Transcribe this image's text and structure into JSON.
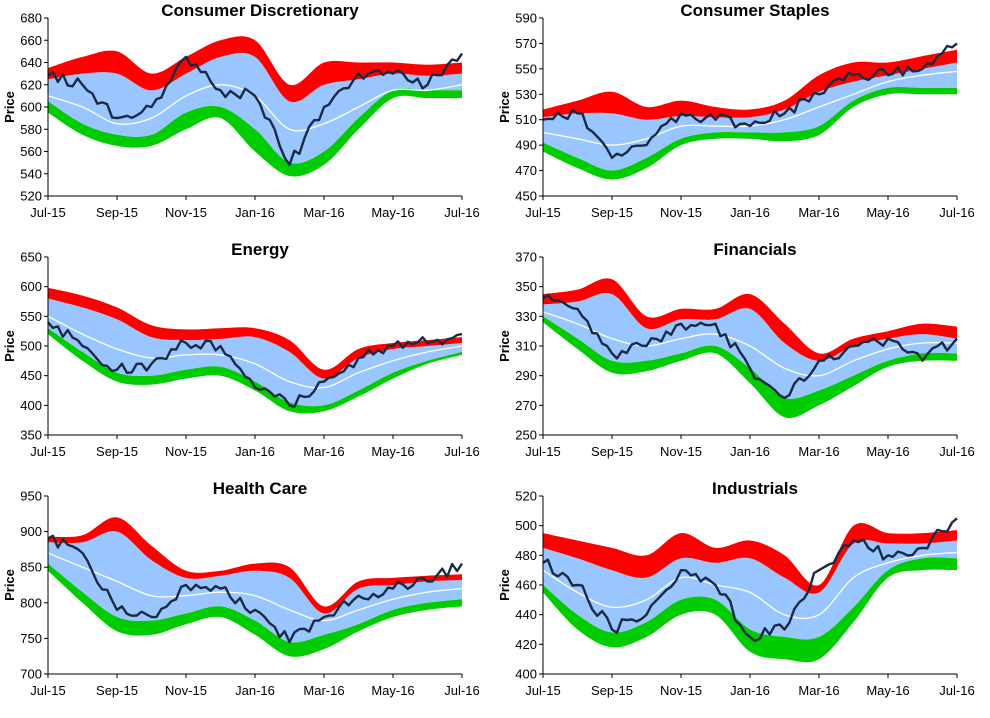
{
  "colors": {
    "upper_band": "#ff0000",
    "outer_band": "#99c6ff",
    "lower_band": "#00cc00",
    "mid_line": "#ffffff",
    "price_line": "#1a2a44"
  },
  "chart_data": [
    {
      "type": "area",
      "title": "Consumer Discretionary",
      "ylabel": "Price",
      "ylim": [
        520,
        680
      ],
      "yticks": [
        520,
        540,
        560,
        580,
        600,
        620,
        640,
        660,
        680
      ],
      "xticks": [
        "Jul-15",
        "Sep-15",
        "Nov-15",
        "Jan-16",
        "Mar-16",
        "May-16",
        "Jul-16"
      ],
      "x": [
        0,
        1,
        2,
        3,
        4,
        5,
        6,
        7,
        8,
        9,
        10,
        11,
        12
      ],
      "x_meaning": "months since Jul-15",
      "series": [
        {
          "name": "Price",
          "values": [
            628,
            620,
            590,
            600,
            645,
            615,
            610,
            548,
            600,
            630,
            630,
            620,
            648
          ]
        },
        {
          "name": "Upper band top",
          "values": [
            635,
            645,
            650,
            630,
            645,
            660,
            660,
            620,
            640,
            640,
            640,
            638,
            640
          ]
        },
        {
          "name": "Upper band bottom",
          "values": [
            625,
            630,
            630,
            615,
            630,
            645,
            645,
            605,
            620,
            625,
            630,
            628,
            630
          ]
        },
        {
          "name": "Middle",
          "values": [
            610,
            600,
            585,
            590,
            610,
            620,
            610,
            580,
            585,
            600,
            615,
            615,
            620
          ]
        },
        {
          "name": "Lower band top",
          "values": [
            605,
            585,
            575,
            575,
            595,
            600,
            580,
            550,
            560,
            590,
            615,
            615,
            615
          ]
        },
        {
          "name": "Lower band bottom",
          "values": [
            595,
            575,
            565,
            565,
            580,
            590,
            560,
            538,
            548,
            580,
            608,
            608,
            608
          ]
        }
      ]
    },
    {
      "type": "area",
      "title": "Consumer Staples",
      "ylabel": "Price",
      "ylim": [
        450,
        590
      ],
      "yticks": [
        450,
        470,
        490,
        510,
        530,
        550,
        570,
        590
      ],
      "xticks": [
        "Jul-15",
        "Sep-15",
        "Nov-15",
        "Jan-16",
        "Mar-16",
        "May-16",
        "Jul-16"
      ],
      "x": [
        0,
        1,
        2,
        3,
        4,
        5,
        6,
        7,
        8,
        9,
        10,
        11,
        12
      ],
      "x_meaning": "months since Jul-15",
      "series": [
        {
          "name": "Price",
          "values": [
            510,
            515,
            480,
            490,
            515,
            510,
            505,
            515,
            530,
            545,
            545,
            550,
            570
          ]
        },
        {
          "name": "Upper band top",
          "values": [
            518,
            525,
            532,
            520,
            525,
            520,
            518,
            525,
            545,
            555,
            555,
            560,
            565
          ]
        },
        {
          "name": "Upper band bottom",
          "values": [
            512,
            515,
            515,
            510,
            513,
            512,
            512,
            518,
            532,
            540,
            545,
            550,
            555
          ]
        },
        {
          "name": "Middle",
          "values": [
            500,
            495,
            490,
            495,
            505,
            505,
            505,
            510,
            520,
            530,
            540,
            545,
            548
          ]
        },
        {
          "name": "Lower band top",
          "values": [
            492,
            480,
            470,
            480,
            495,
            500,
            500,
            500,
            505,
            525,
            535,
            535,
            535
          ]
        },
        {
          "name": "Lower band bottom",
          "values": [
            485,
            472,
            463,
            472,
            490,
            495,
            495,
            493,
            498,
            520,
            530,
            530,
            530
          ]
        }
      ]
    },
    {
      "type": "area",
      "title": "Energy",
      "ylabel": "Price",
      "ylim": [
        350,
        650
      ],
      "yticks": [
        350,
        400,
        450,
        500,
        550,
        600,
        650
      ],
      "xticks": [
        "Jul-15",
        "Sep-15",
        "Nov-15",
        "Jan-16",
        "Mar-16",
        "May-16",
        "Jul-16"
      ],
      "x": [
        0,
        1,
        2,
        3,
        4,
        5,
        6,
        7,
        8,
        9,
        10,
        11,
        12
      ],
      "x_meaning": "months since Jul-15",
      "series": [
        {
          "name": "Price",
          "values": [
            540,
            500,
            460,
            470,
            505,
            500,
            430,
            400,
            440,
            480,
            500,
            505,
            520
          ]
        },
        {
          "name": "Upper band top",
          "values": [
            598,
            585,
            565,
            535,
            528,
            530,
            530,
            510,
            460,
            495,
            505,
            510,
            515
          ]
        },
        {
          "name": "Upper band bottom",
          "values": [
            580,
            565,
            545,
            515,
            510,
            512,
            515,
            490,
            445,
            480,
            495,
            500,
            505
          ]
        },
        {
          "name": "Middle",
          "values": [
            550,
            520,
            495,
            480,
            485,
            485,
            470,
            440,
            430,
            455,
            475,
            490,
            500
          ]
        },
        {
          "name": "Lower band top",
          "values": [
            530,
            490,
            455,
            450,
            460,
            465,
            440,
            405,
            400,
            425,
            455,
            475,
            490
          ]
        },
        {
          "name": "Lower band bottom",
          "values": [
            520,
            475,
            440,
            435,
            445,
            450,
            425,
            390,
            390,
            415,
            445,
            470,
            485
          ]
        }
      ]
    },
    {
      "type": "area",
      "title": "Financials",
      "ylabel": "Price",
      "ylim": [
        250,
        370
      ],
      "yticks": [
        250,
        270,
        290,
        310,
        330,
        350,
        370
      ],
      "xticks": [
        "Jul-15",
        "Sep-15",
        "Nov-15",
        "Jan-16",
        "Mar-16",
        "May-16",
        "Jul-16"
      ],
      "x": [
        0,
        1,
        2,
        3,
        4,
        5,
        6,
        7,
        8,
        9,
        10,
        11,
        12
      ],
      "x_meaning": "months since Jul-15",
      "series": [
        {
          "name": "Price",
          "values": [
            342,
            335,
            305,
            310,
            325,
            325,
            295,
            275,
            300,
            310,
            315,
            300,
            315
          ]
        },
        {
          "name": "Upper band top",
          "values": [
            345,
            348,
            355,
            330,
            335,
            335,
            345,
            325,
            305,
            315,
            320,
            325,
            323
          ]
        },
        {
          "name": "Upper band bottom",
          "values": [
            338,
            340,
            345,
            322,
            328,
            328,
            335,
            312,
            300,
            310,
            315,
            318,
            315
          ]
        },
        {
          "name": "Middle",
          "values": [
            333,
            325,
            315,
            310,
            315,
            318,
            310,
            295,
            290,
            300,
            308,
            312,
            312
          ]
        },
        {
          "name": "Lower band top",
          "values": [
            330,
            315,
            300,
            300,
            305,
            310,
            295,
            275,
            280,
            290,
            300,
            305,
            305
          ]
        },
        {
          "name": "Lower band bottom",
          "values": [
            326,
            308,
            292,
            293,
            300,
            305,
            285,
            262,
            270,
            283,
            296,
            300,
            300
          ]
        }
      ]
    },
    {
      "type": "area",
      "title": "Health Care",
      "ylabel": "Price",
      "ylim": [
        700,
        950
      ],
      "yticks": [
        700,
        750,
        800,
        850,
        900,
        950
      ],
      "xticks": [
        "Jul-15",
        "Sep-15",
        "Nov-15",
        "Jan-16",
        "Mar-16",
        "May-16",
        "Jul-16"
      ],
      "x": [
        0,
        1,
        2,
        3,
        4,
        5,
        6,
        7,
        8,
        9,
        10,
        11,
        12
      ],
      "x_meaning": "months since Jul-15",
      "series": [
        {
          "name": "Price",
          "values": [
            890,
            870,
            790,
            780,
            825,
            820,
            790,
            745,
            780,
            810,
            820,
            830,
            855
          ]
        },
        {
          "name": "Upper band top",
          "values": [
            893,
            895,
            920,
            880,
            845,
            845,
            855,
            850,
            795,
            830,
            835,
            838,
            840
          ]
        },
        {
          "name": "Upper band bottom",
          "values": [
            885,
            885,
            900,
            860,
            835,
            838,
            845,
            835,
            785,
            820,
            825,
            830,
            832
          ]
        },
        {
          "name": "Middle",
          "values": [
            870,
            850,
            830,
            810,
            810,
            815,
            810,
            790,
            775,
            790,
            805,
            815,
            820
          ]
        },
        {
          "name": "Lower band top",
          "values": [
            855,
            815,
            780,
            775,
            785,
            795,
            775,
            745,
            755,
            770,
            790,
            800,
            805
          ]
        },
        {
          "name": "Lower band bottom",
          "values": [
            845,
            800,
            760,
            755,
            770,
            780,
            755,
            725,
            735,
            760,
            780,
            790,
            795
          ]
        }
      ]
    },
    {
      "type": "area",
      "title": "Industrials",
      "ylabel": "Price",
      "ylim": [
        400,
        520
      ],
      "yticks": [
        400,
        420,
        440,
        460,
        480,
        500,
        520
      ],
      "xticks": [
        "Jul-15",
        "Sep-15",
        "Nov-15",
        "Jan-16",
        "Mar-16",
        "May-16",
        "Jul-16"
      ],
      "x": [
        0,
        1,
        2,
        3,
        4,
        5,
        6,
        7,
        8,
        9,
        10,
        11,
        12
      ],
      "x_meaning": "months since Jul-15",
      "series": [
        {
          "name": "Price",
          "values": [
            475,
            460,
            430,
            440,
            470,
            460,
            425,
            430,
            470,
            490,
            480,
            485,
            505
          ]
        },
        {
          "name": "Upper band top",
          "values": [
            495,
            490,
            485,
            480,
            495,
            485,
            490,
            480,
            460,
            500,
            495,
            495,
            497
          ]
        },
        {
          "name": "Upper band bottom",
          "values": [
            485,
            478,
            470,
            465,
            478,
            475,
            478,
            465,
            455,
            488,
            488,
            488,
            490
          ]
        },
        {
          "name": "Middle",
          "values": [
            470,
            455,
            445,
            450,
            465,
            460,
            455,
            440,
            440,
            465,
            475,
            480,
            482
          ]
        },
        {
          "name": "Lower band top",
          "values": [
            460,
            440,
            428,
            435,
            450,
            450,
            430,
            425,
            425,
            445,
            470,
            478,
            478
          ]
        },
        {
          "name": "Lower band bottom",
          "values": [
            455,
            430,
            418,
            425,
            440,
            440,
            415,
            410,
            410,
            435,
            465,
            470,
            470
          ]
        }
      ]
    }
  ]
}
